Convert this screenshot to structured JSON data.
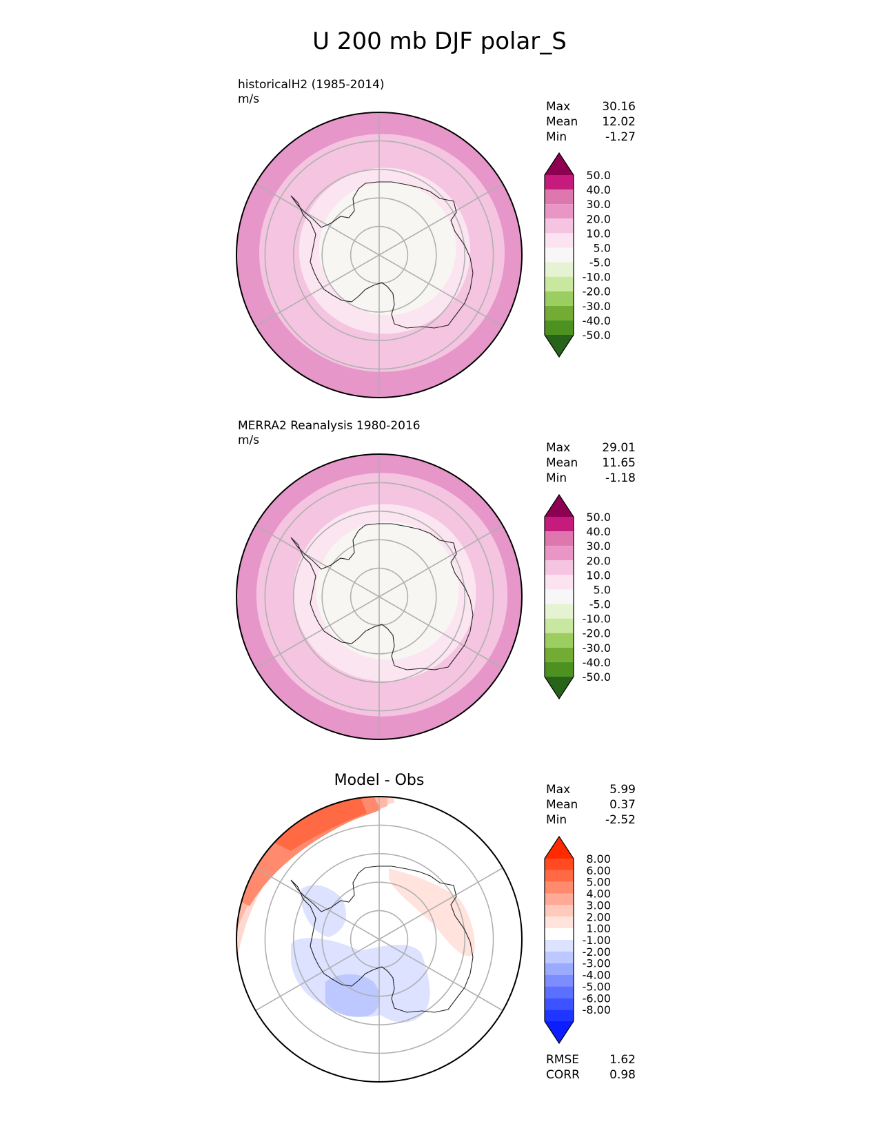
{
  "title": "U 200 mb DJF polar_S",
  "panels": [
    {
      "id": "test",
      "label_line1": "historicalH2 (1985-2014)",
      "label_line2": "m/s",
      "stats": [
        {
          "name": "Max",
          "value": "30.16"
        },
        {
          "name": "Mean",
          "value": "12.02"
        },
        {
          "name": "Min",
          "value": "-1.27"
        }
      ],
      "rings": [
        {
          "lat": -40,
          "color": "#e696c8"
        },
        {
          "lat": -47,
          "color": "#f4c4e0"
        },
        {
          "lat": -60,
          "color": "#fbe5f0"
        },
        {
          "lat": -66,
          "color": "#f7f6f3"
        }
      ]
    },
    {
      "id": "ref",
      "label_line1": "MERRA2 Reanalysis 1980-2016",
      "label_line2": "m/s",
      "stats": [
        {
          "name": "Max",
          "value": "29.01"
        },
        {
          "name": "Mean",
          "value": "11.65"
        },
        {
          "name": "Min",
          "value": "-1.18"
        }
      ],
      "rings": [
        {
          "lat": -40,
          "color": "#e696c8"
        },
        {
          "lat": -46,
          "color": "#f4c4e0"
        },
        {
          "lat": -58,
          "color": "#fbe5f0"
        },
        {
          "lat": -65,
          "color": "#f7f6f3"
        }
      ]
    }
  ],
  "diff": {
    "title": "Model - Obs",
    "stats": [
      {
        "name": "Max",
        "value": "5.99"
      },
      {
        "name": "Mean",
        "value": "0.37"
      },
      {
        "name": "Min",
        "value": "-2.52"
      }
    ],
    "metrics": [
      {
        "name": "RMSE",
        "value": "1.62"
      },
      {
        "name": "CORR",
        "value": "0.98"
      }
    ]
  },
  "colorbar_main": {
    "colors": [
      "#8e0152",
      "#c51b7d",
      "#de77ae",
      "#e996c6",
      "#f4c4e0",
      "#fbe4ef",
      "#f7f7f7",
      "#e6f3d3",
      "#c8e8a0",
      "#9ccd60",
      "#72ac35",
      "#4d9221",
      "#276419"
    ],
    "labels": [
      "50.0",
      "40.0",
      "30.0",
      "20.0",
      "10.0",
      "5.0",
      "-5.0",
      "-10.0",
      "-20.0",
      "-30.0",
      "-40.0",
      "-50.0"
    ]
  },
  "colorbar_diff": {
    "colors": [
      "#ff2a00",
      "#ff4a22",
      "#ff6a45",
      "#ff8a6e",
      "#ffaa96",
      "#ffc9bb",
      "#ffe3dc",
      "#ffffff",
      "#dce2ff",
      "#bcc8ff",
      "#9aabff",
      "#7b8dff",
      "#5c70ff",
      "#3d53ff",
      "#1e36ff",
      "#0a1eff"
    ],
    "labels": [
      "8.00",
      "6.00",
      "5.00",
      "4.00",
      "3.00",
      "2.00",
      "1.00",
      "-1.00",
      "-2.00",
      "-3.00",
      "-4.00",
      "-5.00",
      "-6.00",
      "-8.00"
    ]
  }
}
